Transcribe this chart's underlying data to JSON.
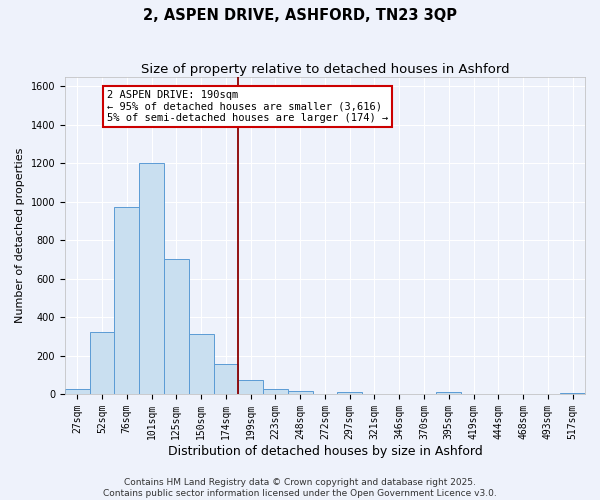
{
  "title": "2, ASPEN DRIVE, ASHFORD, TN23 3QP",
  "subtitle": "Size of property relative to detached houses in Ashford",
  "xlabel": "Distribution of detached houses by size in Ashford",
  "ylabel": "Number of detached properties",
  "bin_labels": [
    "27sqm",
    "52sqm",
    "76sqm",
    "101sqm",
    "125sqm",
    "150sqm",
    "174sqm",
    "199sqm",
    "223sqm",
    "248sqm",
    "272sqm",
    "297sqm",
    "321sqm",
    "346sqm",
    "370sqm",
    "395sqm",
    "419sqm",
    "444sqm",
    "468sqm",
    "493sqm",
    "517sqm"
  ],
  "bin_values": [
    25,
    320,
    970,
    1200,
    700,
    310,
    155,
    75,
    25,
    15,
    0,
    10,
    0,
    0,
    0,
    10,
    0,
    0,
    0,
    0,
    5
  ],
  "bar_color": "#c9dff0",
  "bar_edge_color": "#5b9bd5",
  "vline_color": "#8b0000",
  "annotation_text": "2 ASPEN DRIVE: 190sqm\n← 95% of detached houses are smaller (3,616)\n5% of semi-detached houses are larger (174) →",
  "annotation_box_color": "white",
  "annotation_box_edge_color": "#cc0000",
  "ylim": [
    0,
    1650
  ],
  "yticks": [
    0,
    200,
    400,
    600,
    800,
    1000,
    1200,
    1400,
    1600
  ],
  "background_color": "#eef2fb",
  "grid_color": "white",
  "footer_line1": "Contains HM Land Registry data © Crown copyright and database right 2025.",
  "footer_line2": "Contains public sector information licensed under the Open Government Licence v3.0.",
  "title_fontsize": 10.5,
  "subtitle_fontsize": 9.5,
  "xlabel_fontsize": 9,
  "ylabel_fontsize": 8,
  "tick_fontsize": 7,
  "footer_fontsize": 6.5,
  "annotation_fontsize": 7.5,
  "vline_x": 6.5
}
